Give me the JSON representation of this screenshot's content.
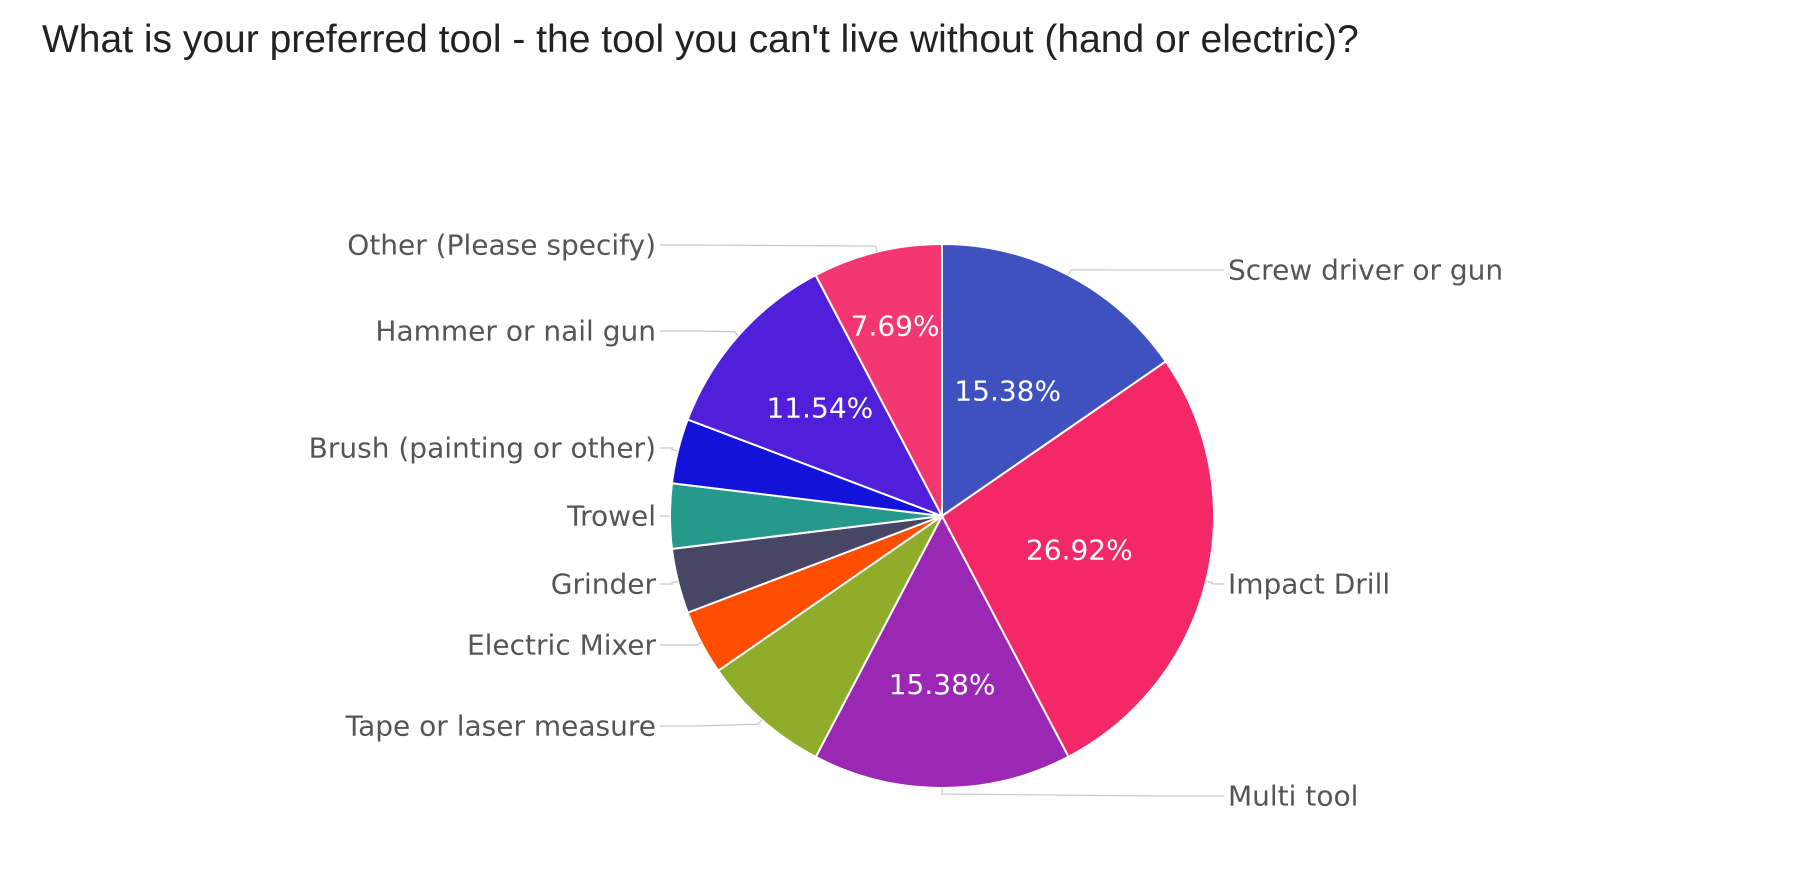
{
  "chart_data": {
    "type": "pie",
    "title": "What is your preferred tool - the tool you can't live without (hand or electric)?",
    "slices": [
      {
        "label": "Screw driver or gun",
        "value": 15.38,
        "display": "15.38%",
        "color": "#3F51BF"
      },
      {
        "label": "Impact Drill",
        "value": 26.92,
        "display": "26.92%",
        "color": "#F42866"
      },
      {
        "label": "Multi tool",
        "value": 15.38,
        "display": "15.38%",
        "color": "#9B27B5"
      },
      {
        "label": "Tape or laser measure",
        "value": 7.69,
        "display": "",
        "color": "#8FAD2B"
      },
      {
        "label": "Electric Mixer",
        "value": 3.85,
        "display": "",
        "color": "#FF4E00"
      },
      {
        "label": "Grinder",
        "value": 3.85,
        "display": "",
        "color": "#474664"
      },
      {
        "label": "Trowel",
        "value": 3.85,
        "display": "",
        "color": "#259A8C"
      },
      {
        "label": "Brush (painting or other)",
        "value": 3.85,
        "display": "",
        "color": "#1212D9"
      },
      {
        "label": "Hammer or nail gun",
        "value": 11.54,
        "display": "11.54%",
        "color": "#4F1FD9"
      },
      {
        "label": "Other (Please specify)",
        "value": 7.69,
        "display": "7.69%",
        "color": "#F53771"
      }
    ]
  }
}
